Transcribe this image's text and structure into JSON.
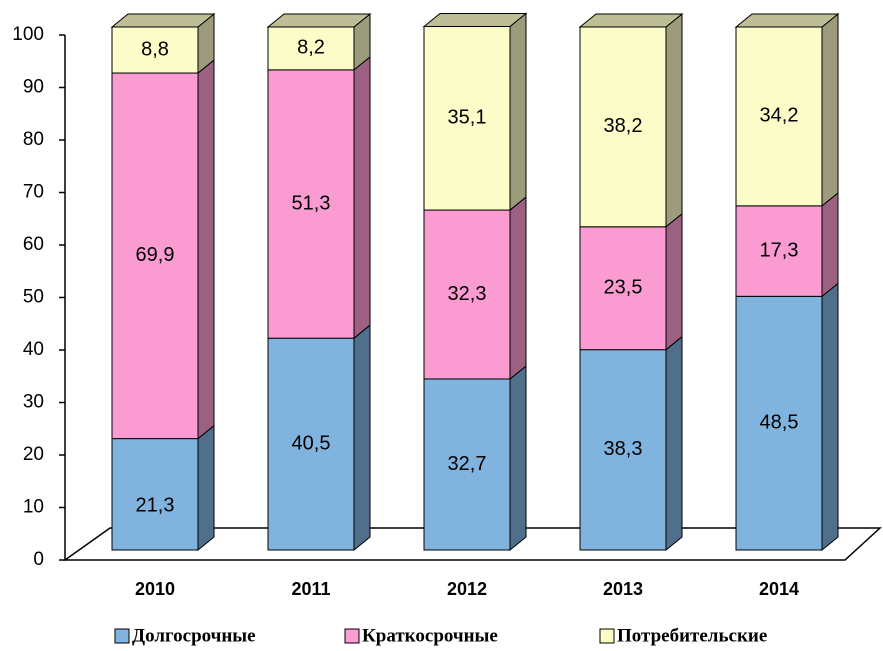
{
  "chart_data": {
    "type": "stacked_bar_3d",
    "categories": [
      "2010",
      "2011",
      "2012",
      "2013",
      "2014"
    ],
    "series": [
      {
        "name": "Долгосрочные",
        "color": "#80b3de",
        "values": [
          21.3,
          40.5,
          32.7,
          38.3,
          48.5
        ],
        "value_labels": [
          "21,3",
          "40,5",
          "32,7",
          "38,3",
          "48,5"
        ]
      },
      {
        "name": "Краткосрочные",
        "color": "#fa9bd2",
        "values": [
          69.9,
          51.3,
          32.3,
          23.5,
          17.3
        ],
        "value_labels": [
          "69,9",
          "51,3",
          "32,3",
          "23,5",
          "17,3"
        ]
      },
      {
        "name": "Потребительские",
        "color": "#fcfcc8",
        "values": [
          8.8,
          8.2,
          35.1,
          38.2,
          34.2
        ],
        "value_labels": [
          "8,8",
          "8,2",
          "35,1",
          "38,2",
          "34,2"
        ]
      }
    ],
    "ylim": [
      0,
      100
    ],
    "yticks": [
      0,
      10,
      20,
      30,
      40,
      50,
      60,
      70,
      80,
      90,
      100
    ],
    "legend": "bottom"
  }
}
